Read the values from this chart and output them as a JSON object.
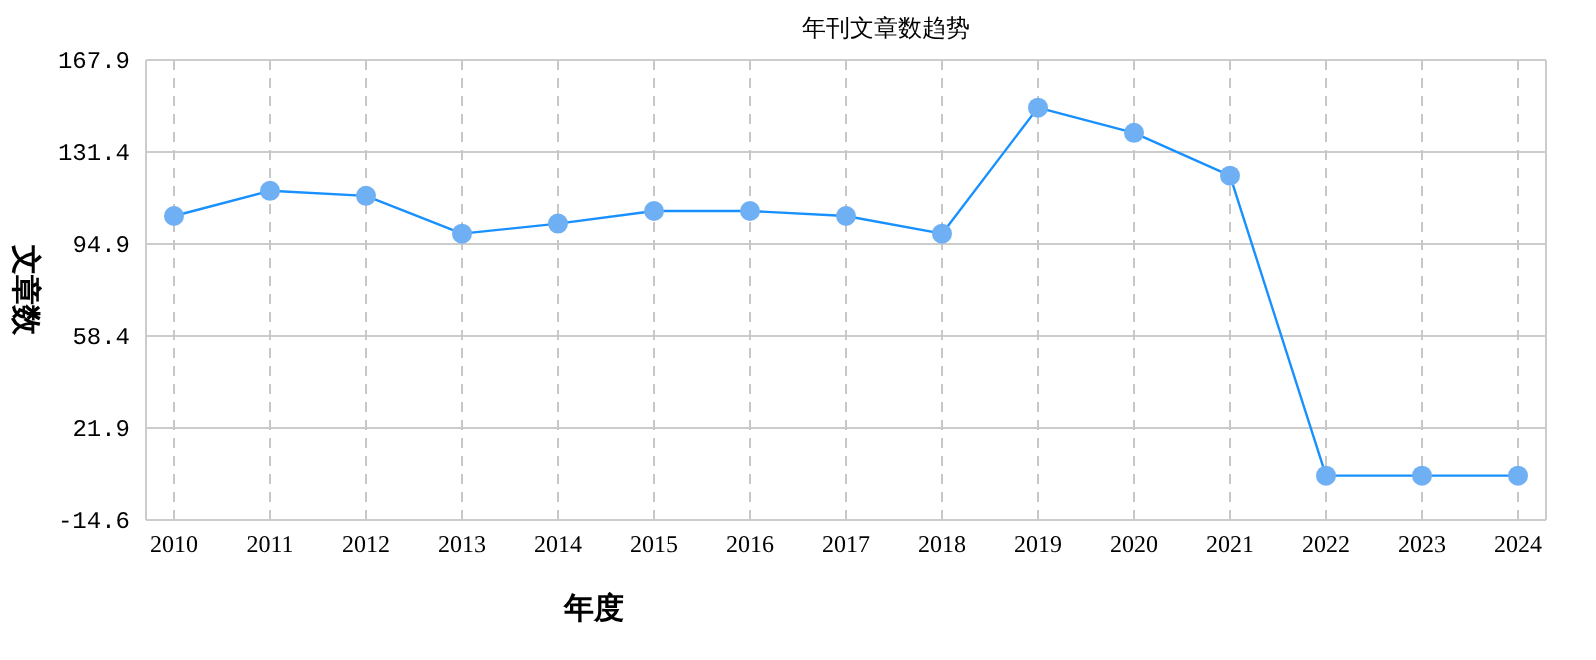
{
  "chart_data": {
    "type": "line",
    "title": "年刊文章数趋势",
    "xlabel": "年度",
    "ylabel": "文章数",
    "categories": [
      "2010",
      "2011",
      "2012",
      "2013",
      "2014",
      "2015",
      "2016",
      "2017",
      "2018",
      "2019",
      "2020",
      "2021",
      "2022",
      "2023",
      "2024"
    ],
    "series": [
      {
        "color": "#1890ff",
        "values": [
          106,
          116,
          114,
          99,
          103,
          108,
          108,
          106,
          99,
          149,
          139,
          122,
          3,
          3,
          3
        ]
      }
    ],
    "ylim": [
      -14.6,
      167.9
    ],
    "yticks": [
      -14.6,
      21.9,
      58.4,
      94.9,
      131.4,
      167.9
    ],
    "grid": true,
    "marker": "circle",
    "line_style": "solid"
  }
}
